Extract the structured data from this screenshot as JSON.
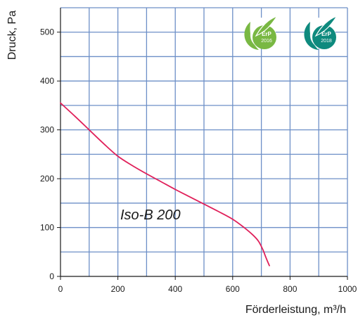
{
  "chart_data": {
    "type": "line",
    "title": "",
    "xlabel": "Förderleistung, m³/h",
    "ylabel": "Druck, Pa",
    "xlim": [
      0,
      1000
    ],
    "ylim": [
      0,
      550
    ],
    "x_ticks": [
      0,
      200,
      400,
      600,
      800,
      1000
    ],
    "y_ticks": [
      0,
      100,
      200,
      300,
      400,
      500
    ],
    "x_ticks_minor": [
      100,
      300,
      500,
      700,
      900
    ],
    "y_ticks_minor": [
      50,
      150,
      250,
      350,
      450,
      550
    ],
    "grid": true,
    "series": [
      {
        "name": "Iso-B 200",
        "color": "#e0205a",
        "x": [
          0,
          50,
          100,
          150,
          200,
          250,
          300,
          350,
          400,
          450,
          500,
          550,
          600,
          640,
          670,
          690,
          705,
          715,
          722,
          728
        ],
        "y": [
          355,
          328,
          300,
          272,
          246,
          227,
          210,
          194,
          178,
          163,
          148,
          133,
          117,
          100,
          85,
          72,
          55,
          40,
          30,
          22
        ]
      }
    ],
    "grid_color": "#6d8fc7",
    "badges": [
      {
        "icon": "erp-2016-leaf-icon",
        "line1": "ErP",
        "line2": "2016",
        "color": "#79b843"
      },
      {
        "icon": "erp-2018-leaf-icon",
        "line1": "ErP",
        "line2": "2018",
        "color": "#0e8a7e"
      }
    ]
  }
}
